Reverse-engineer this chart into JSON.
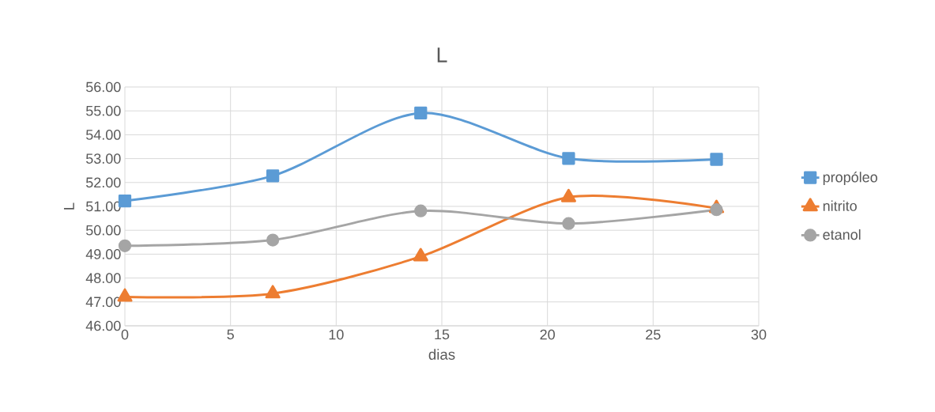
{
  "chart_data": {
    "type": "line",
    "title": "L",
    "xlabel": "dias",
    "ylabel": "L",
    "x": [
      0,
      7,
      14,
      21,
      28
    ],
    "series": [
      {
        "name": "propóleo",
        "color": "#5b9bd5",
        "marker": "square",
        "values": [
          51.23,
          52.28,
          54.91,
          53.01,
          52.97
        ]
      },
      {
        "name": "nitrito",
        "color": "#ed7d31",
        "marker": "triangle",
        "values": [
          47.21,
          47.35,
          48.9,
          51.38,
          50.92
        ]
      },
      {
        "name": "etanol",
        "color": "#a5a5a5",
        "marker": "circle",
        "values": [
          49.35,
          49.59,
          50.81,
          50.28,
          50.86
        ]
      }
    ],
    "xlim": [
      0,
      30
    ],
    "xticks": [
      0,
      5,
      10,
      15,
      20,
      25,
      30
    ],
    "ylim": [
      46,
      56
    ],
    "yticks": [
      {
        "value": 46,
        "label": "46.00"
      },
      {
        "value": 47,
        "label": "47.00"
      },
      {
        "value": 48,
        "label": "48.00"
      },
      {
        "value": 49,
        "label": "49.00"
      },
      {
        "value": 50,
        "label": "50.00"
      },
      {
        "value": 51,
        "label": "51.00"
      },
      {
        "value": 52,
        "label": "52.00"
      },
      {
        "value": 53,
        "label": "53.00"
      },
      {
        "value": 54,
        "label": "54.00"
      },
      {
        "value": 55,
        "label": "55.00"
      },
      {
        "value": 56,
        "label": "56.00"
      }
    ],
    "grid": true,
    "legend": "right",
    "line_style": "solid"
  }
}
